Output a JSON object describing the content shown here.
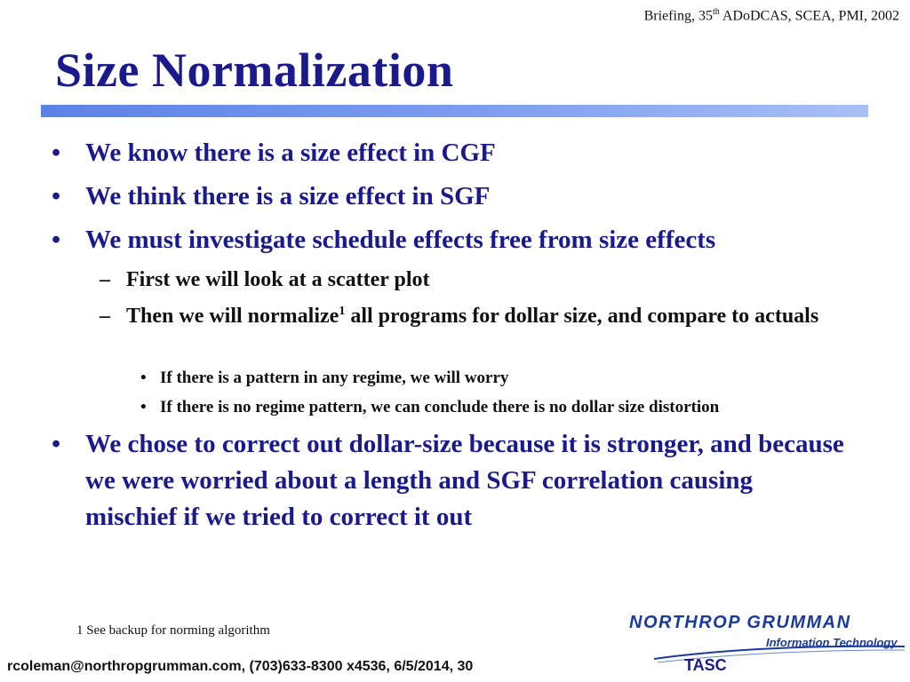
{
  "header": {
    "note_prefix": "Briefing, 35",
    "note_sup": "th",
    "note_suffix": " ADoDCAS, SCEA, PMI, 2002"
  },
  "title": "Size Normalization",
  "bullets": {
    "b1": "We know there is a size effect in CGF",
    "b2": "We think there is a size effect in SGF",
    "b3": "We must investigate schedule effects free from size effects",
    "b3_sub1": "First we will look at a scatter plot",
    "b3_sub2_pre": "Then we will normalize",
    "b3_sub2_sup": "1",
    "b3_sub2_post": " all programs for dollar size, and compare to actuals",
    "b3_sub2_sub1": "If there is a pattern in any regime, we will worry",
    "b3_sub2_sub2": "If there is no regime pattern, we can conclude there is no dollar size distortion",
    "b4": "We chose to correct out dollar-size because it is stronger, and because we were worried about a length and SGF correlation causing mischief if we tried to correct it out"
  },
  "bullet_chars": {
    "l1": "•",
    "l2": "–",
    "l3": "•"
  },
  "footnote": "1 See backup for norming algorithm",
  "footer": "rcoleman@northropgrumman.com, (703)633-8300 x4536, 6/5/2014, 30",
  "logo": {
    "company": "NORTHROP GRUMMAN",
    "division": "Information Technology",
    "unit": "TASC"
  },
  "colors": {
    "title": "#1a1a8c",
    "accent_bar": "#7e9ff0",
    "logo": "#1a3a9c"
  }
}
